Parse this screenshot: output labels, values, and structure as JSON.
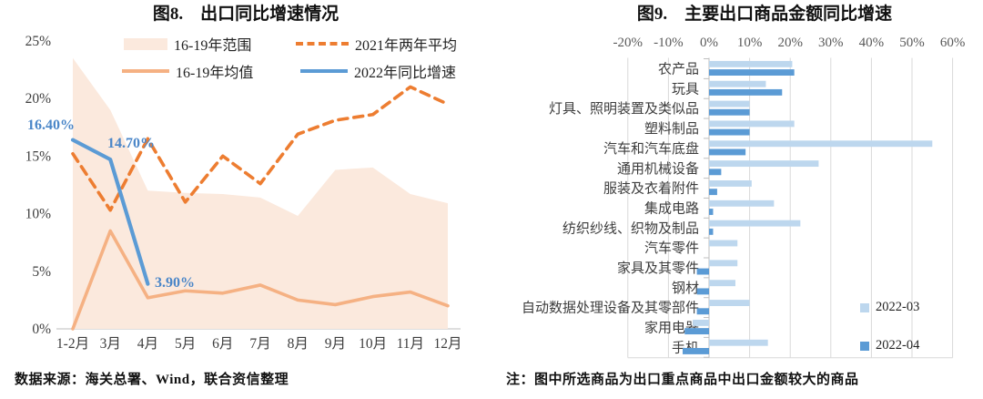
{
  "figure8": {
    "title": "图8.    出口同比增速情况",
    "y_ticks": [
      "25%",
      "20%",
      "15%",
      "10%",
      "5%",
      "0%"
    ],
    "legend": [
      {
        "label": "16-19年范围",
        "swatch": "area",
        "color": "#FBE9DD"
      },
      {
        "label": "2021年两年平均",
        "swatch": "dashed-line",
        "color": "#ED7D31"
      },
      {
        "label": "16-19年均值",
        "swatch": "line",
        "color": "#F5B183"
      },
      {
        "label": "2022年同比增速",
        "swatch": "line",
        "color": "#5B9BD5"
      }
    ],
    "annotations": [
      {
        "label": "16.40%"
      },
      {
        "label": "14.70%"
      },
      {
        "label": "3.90%"
      }
    ],
    "source_note": "数据来源：海关总署、Wind，联合资信整理"
  },
  "figure9": {
    "title": "图9.    主要出口商品金额同比增速",
    "x_ticks": [
      "-20%",
      "-10%",
      "0%",
      "10%",
      "20%",
      "30%",
      "40%",
      "50%",
      "60%"
    ],
    "legend": [
      {
        "label": "2022-03",
        "color": "#BDD7EE"
      },
      {
        "label": "2022-04",
        "color": "#5B9BD5"
      }
    ],
    "note": "注：图中所选商品为出口重点商品中出口金额较大的商品"
  },
  "chart_data": [
    {
      "type": "line",
      "title": "出口同比增速情况",
      "categories": [
        "1-2月",
        "3月",
        "4月",
        "5月",
        "6月",
        "7月",
        "8月",
        "9月",
        "10月",
        "11月",
        "12月"
      ],
      "ylim": [
        0,
        25
      ],
      "y_tick_values": [
        25,
        20,
        15,
        10,
        5,
        0
      ],
      "grid": false,
      "legend_position": "top",
      "series": [
        {
          "name": "16-19年范围",
          "type": "area-range",
          "color": "#FBE9DD",
          "upper": [
            23.5,
            19.0,
            12.0,
            11.8,
            11.7,
            11.4,
            9.8,
            13.8,
            14.0,
            11.7,
            10.9
          ],
          "lower": [
            0,
            0,
            0,
            0,
            0,
            0,
            0,
            0,
            0,
            0,
            0
          ]
        },
        {
          "name": "16-19年均值",
          "type": "line",
          "color": "#F5B183",
          "values": [
            0,
            8.5,
            2.7,
            3.3,
            3.1,
            3.8,
            2.5,
            2.1,
            2.8,
            3.2,
            2.0
          ]
        },
        {
          "name": "2021年两年平均",
          "type": "dashed-line",
          "color": "#ED7D31",
          "values": [
            15.2,
            10.3,
            16.5,
            11.0,
            15.0,
            12.6,
            16.9,
            18.1,
            18.6,
            21.0,
            19.5
          ]
        },
        {
          "name": "2022年同比增速",
          "type": "line",
          "color": "#5B9BD5",
          "values": [
            16.4,
            14.7,
            3.9
          ]
        }
      ],
      "annotations": [
        {
          "text": "16.40%",
          "category": "1-2月",
          "value": 16.4
        },
        {
          "text": "14.70%",
          "category": "3月",
          "value": 14.7
        },
        {
          "text": "3.90%",
          "category": "4月",
          "value": 3.9
        }
      ]
    },
    {
      "type": "bar",
      "orientation": "horizontal",
      "title": "主要出口商品金额同比增速",
      "categories": [
        "农产品",
        "玩具",
        "灯具、照明装置及类似品",
        "塑料制品",
        "汽车和汽车底盘",
        "通用机械设备",
        "服装及衣着附件",
        "集成电路",
        "纺织纱线、织物及制品",
        "汽车零件",
        "家具及其零件",
        "钢材",
        "自动数据处理设备及其零部件",
        "家用电器",
        "手机"
      ],
      "xlim": [
        -20,
        60
      ],
      "x_tick_values": [
        -20,
        -10,
        0,
        10,
        20,
        30,
        40,
        50,
        60
      ],
      "legend_position": "right-bottom",
      "series": [
        {
          "name": "2022-03",
          "color": "#BDD7EE",
          "values": [
            20.5,
            14,
            10,
            21,
            55,
            27,
            10.5,
            16,
            22.5,
            7,
            7,
            6.5,
            10,
            -4,
            14.5
          ]
        },
        {
          "name": "2022-04",
          "color": "#5B9BD5",
          "values": [
            21,
            18,
            10,
            10,
            9,
            3,
            2,
            1,
            1,
            0,
            -3,
            -3,
            -3,
            -6,
            -6.5
          ]
        }
      ]
    }
  ]
}
